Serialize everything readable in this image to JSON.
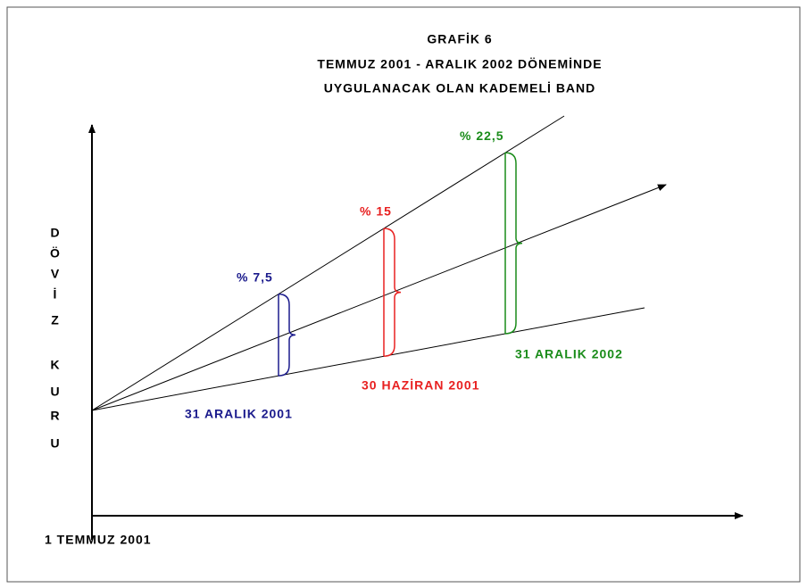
{
  "title": [
    "GRAFİK 6",
    "TEMMUZ 2001 - ARALIK 2002 DÖNEMİNDE",
    "UYGULANACAK OLAN KADEMELİ BAND"
  ],
  "y_axis_label": [
    "D",
    "Ö",
    "V",
    "İ",
    "Z",
    "K",
    "U",
    "R",
    "U"
  ],
  "x_axis_label": "1 TEMMUZ 2001",
  "bands": [
    {
      "label": "% 7,5",
      "date": "31 ARALIK 2001",
      "color": "#1a1a8c"
    },
    {
      "label": "% 15",
      "date": "30 HAZİRAN 2001",
      "color": "#e82020"
    },
    {
      "label": "% 22,5",
      "date": "31 ARALIK 2002",
      "color": "#1a8c1a"
    }
  ]
}
